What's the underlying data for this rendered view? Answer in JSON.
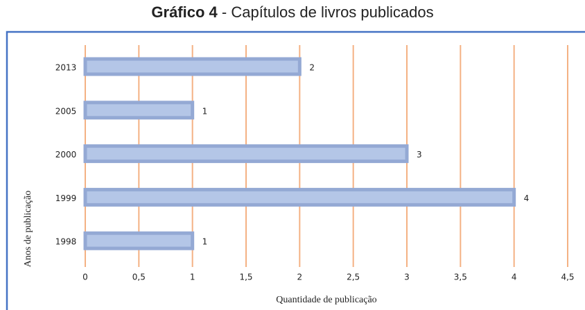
{
  "chart_data": {
    "type": "bar",
    "orientation": "horizontal",
    "title_bold": "Gráfico 4",
    "title": "- Capítulos de livros publicados",
    "x_label": "Quantidade de publicação",
    "y_label": "Anos de publicação",
    "categories": [
      "2013",
      "2005",
      "2000",
      "1999",
      "1998"
    ],
    "values": [
      2,
      1,
      3,
      4,
      1
    ],
    "color": "#b4c6e7",
    "edge_color": "#94a9d4",
    "grid_color": "#f4b183",
    "xlim": [
      0,
      4.5
    ],
    "xticks": [
      0,
      {
        "value": 0.5,
        "label": "0,5"
      },
      1,
      {
        "value": 1.5,
        "label": "1,5"
      },
      2,
      {
        "value": 2.5,
        "label": "2,5"
      },
      3,
      {
        "value": 3.5,
        "label": "3,5"
      },
      4,
      {
        "value": 4.5,
        "label": "4,5"
      }
    ],
    "grid": true
  }
}
